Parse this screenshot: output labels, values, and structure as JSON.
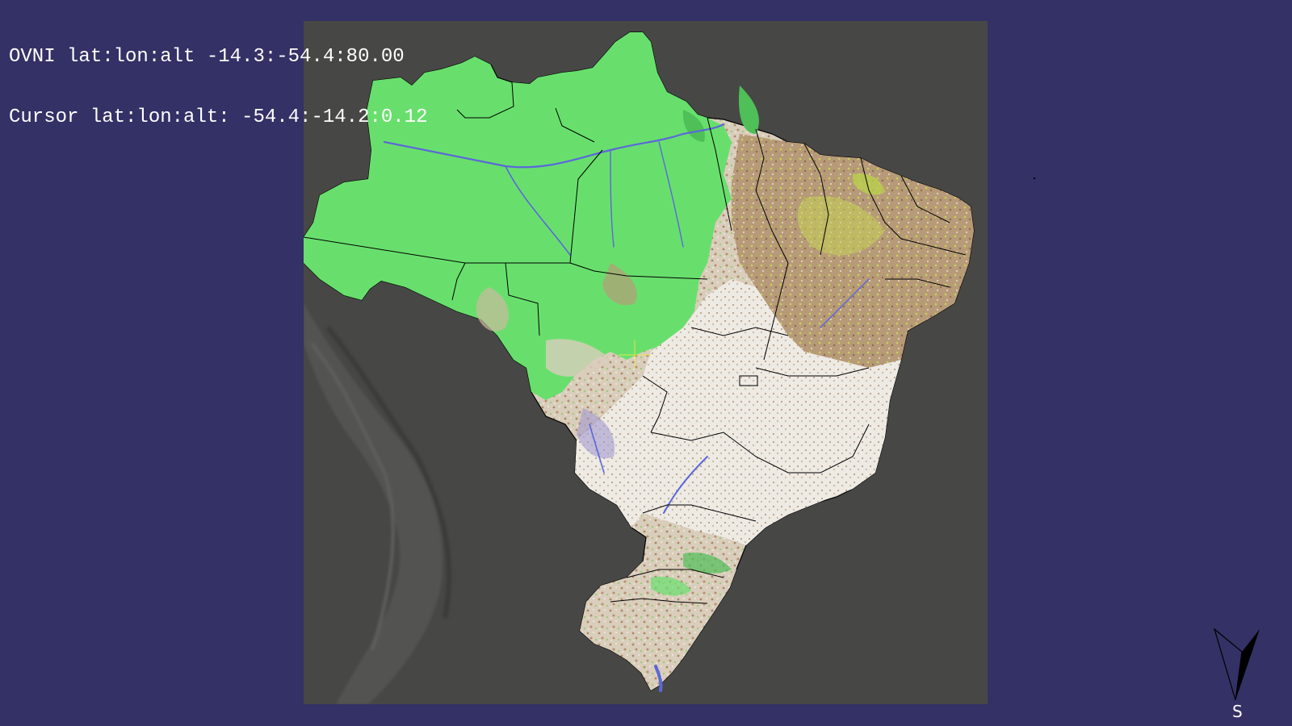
{
  "hud": {
    "ovni_line": "OVNI lat:lon:alt -14.3:-54.4:80.00",
    "cursor_line": "Cursor lat:lon:alt: -54.4:-14.2:0.12"
  },
  "compass": {
    "label": "S"
  },
  "map": {
    "colors": {
      "background": "#333165",
      "ocean_panel": "#474746",
      "amazon_forest": "#68df6d",
      "forest_dark": "#4fbf57",
      "cerrado_light": "#e8ddcf",
      "cerrado_tan": "#cbb99c",
      "savanna_brown": "#a98866",
      "agri_yellowgreen": "#b9d04c",
      "water": "#5a68d8",
      "borders": "#000000",
      "crosshair": "#e8e84a"
    },
    "icons": {
      "compass": "compass-needle-icon",
      "crosshair": "crosshair-icon"
    }
  }
}
